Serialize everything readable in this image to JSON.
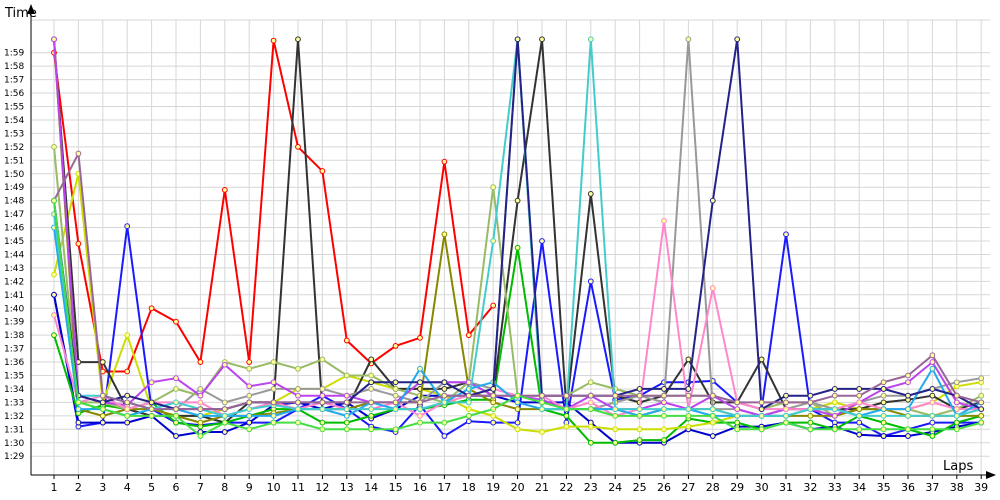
{
  "chart_data": {
    "type": "line",
    "title": "",
    "ylabel": "Time",
    "xlabel": "Laps",
    "x_ticks": [
      "1",
      "2",
      "3",
      "4",
      "5",
      "6",
      "7",
      "8",
      "9",
      "10",
      "11",
      "12",
      "13",
      "14",
      "15",
      "16",
      "17",
      "18",
      "19",
      "20",
      "21",
      "22",
      "23",
      "24",
      "25",
      "26",
      "27",
      "28",
      "29",
      "30",
      "31",
      "32",
      "33",
      "34",
      "35",
      "36",
      "37",
      "38",
      "39"
    ],
    "y_ticks": [
      "1:29",
      "1:30",
      "1:31",
      "1:32",
      "1:33",
      "1:34",
      "1:35",
      "1:36",
      "1:37",
      "1:38",
      "1:39",
      "1:40",
      "1:41",
      "1:42",
      "1:43",
      "1:44",
      "1:45",
      "1:46",
      "1:47",
      "1:48",
      "1:49",
      "1:50",
      "1:51",
      "1:52",
      "1:53",
      "1:54",
      "1:55",
      "1:56",
      "1:57",
      "1:58",
      "1:59"
    ],
    "ylim_seconds": [
      87,
      120
    ],
    "grid": true,
    "series": [
      {
        "color": "#ff0000",
        "values": [
          119,
          104.8,
          95.3,
          95.3,
          100,
          99,
          96,
          108.8,
          96,
          119.9,
          112,
          110.2,
          97.6,
          95.9,
          97.2,
          97.8,
          110.9,
          98,
          100.2,
          null
        ]
      },
      {
        "color": "#1a1aff",
        "values": [
          101,
          91.2,
          91.5,
          106.1,
          92.5,
          91.5,
          91.3,
          91.5,
          91.5,
          91.5,
          92.5,
          93.5,
          92.5,
          91.2,
          90.8,
          92.8,
          90.5,
          91.6,
          91.5,
          91.5,
          105,
          91.5,
          102,
          93.2,
          93.5,
          94.5,
          94.5,
          94.6,
          93,
          92.5,
          105.5,
          92.5,
          91.5,
          91.5,
          90.5,
          91,
          91.5,
          91.5,
          91.5
        ]
      },
      {
        "color": "#0000cc",
        "values": [
          101,
          91.5,
          91.5,
          91.5,
          92,
          90.5,
          90.8,
          90.8,
          91.5,
          92.8,
          93,
          92.5,
          93,
          91.8,
          92.5,
          93.5,
          93.5,
          93.5,
          93.5,
          93,
          93,
          93,
          91.5,
          90,
          90,
          90,
          91,
          90.5,
          91.2,
          91.2,
          91.5,
          91,
          91.2,
          90.6,
          90.5,
          90.5,
          90.8,
          91.2,
          91.5
        ]
      },
      {
        "color": "#00bb00",
        "values": [
          98,
          92.2,
          92.8,
          92.5,
          93,
          91.5,
          91.2,
          91.5,
          92,
          92.5,
          92.5,
          91.5,
          91.5,
          92,
          92.5,
          92.5,
          92.8,
          93.2,
          93.2,
          104.5,
          92.5,
          92,
          90,
          90,
          90.2,
          90.2,
          91.8,
          91.5,
          91.5,
          91,
          91.5,
          91.5,
          91,
          92,
          91.5,
          91,
          90.5,
          91.5,
          92
        ]
      },
      {
        "color": "#ccdd00",
        "values": [
          102.5,
          110,
          93,
          98,
          92.5,
          92,
          92,
          92.5,
          93,
          93,
          94,
          94,
          95,
          94.5,
          94,
          94,
          93.5,
          92.5,
          92,
          91,
          90.8,
          91.2,
          91.2,
          91,
          91,
          91,
          91.2,
          91.5,
          92,
          92,
          92.5,
          92.5,
          93,
          92.5,
          92.5,
          92.5,
          93,
          94.2,
          94.5
        ]
      },
      {
        "color": "#333333",
        "values": [
          120,
          96,
          96,
          92.5,
          92,
          92,
          92,
          91.5,
          93,
          93,
          120,
          92.5,
          92.5,
          96.2,
          94,
          94,
          94,
          94.5,
          93.5,
          108,
          120,
          92.5,
          108.5,
          93.5,
          93,
          93.5,
          96.2,
          93,
          93,
          96.2,
          92.5,
          92.5,
          92.5,
          92.5,
          93,
          93.2,
          93.5,
          92.5,
          93
        ]
      },
      {
        "color": "#999999",
        "values": [
          120,
          93.5,
          93,
          92.5,
          93,
          92.5,
          94,
          93,
          93.5,
          94,
          94,
          94,
          93.5,
          94,
          93.5,
          93,
          94.5,
          94.5,
          94,
          120,
          92.5,
          92.5,
          92.5,
          93,
          93.5,
          93,
          120,
          92.5,
          92.5,
          92,
          92.5,
          93,
          92.5,
          93,
          93.5,
          93.5,
          94,
          94.5,
          94.8
        ]
      },
      {
        "color": "#99bb66",
        "values": [
          112,
          93,
          93,
          92.5,
          93,
          94,
          93.5,
          96,
          95.5,
          96,
          95.5,
          96.2,
          95,
          95,
          94,
          93.5,
          93,
          94.5,
          109,
          93.5,
          93.5,
          93.5,
          94.5,
          94,
          93.5,
          93.5,
          93.5,
          93.5,
          93,
          92.5,
          93,
          93,
          92,
          92.5,
          92.5,
          92.5,
          92,
          92.5,
          93.5
        ]
      },
      {
        "color": "#888800",
        "values": [
          120,
          92.5,
          92,
          92.5,
          92.5,
          92,
          91.5,
          92,
          92,
          92.2,
          92.5,
          92.5,
          92.5,
          93,
          93,
          93,
          105.5,
          94,
          93,
          92.5,
          92.5,
          92.5,
          92.5,
          92.5,
          92,
          92.5,
          92.5,
          92.5,
          92,
          92,
          92,
          92,
          92,
          92.5,
          92.5,
          92,
          92,
          92,
          92
        ]
      },
      {
        "color": "#bb44ee",
        "values": [
          120,
          93.5,
          93,
          92.8,
          94.5,
          94.8,
          93.5,
          95.8,
          94.2,
          94.5,
          93.5,
          93.5,
          93.5,
          93,
          93,
          94.5,
          94.5,
          94.5,
          93.5,
          93.5,
          93.2,
          92.5,
          93.5,
          92.5,
          92.5,
          93,
          92.5,
          93.5,
          92.5,
          92,
          92.5,
          92.5,
          92,
          93,
          94,
          94.5,
          96,
          93,
          92.5
        ]
      },
      {
        "color": "#ff88cc",
        "values": [
          99.5,
          93,
          93.5,
          92.5,
          93,
          93,
          93,
          92,
          92.5,
          93,
          92.5,
          93,
          92.5,
          92.5,
          93,
          92,
          93,
          93.5,
          94,
          93.5,
          93.5,
          92.5,
          93,
          92,
          92.5,
          106.5,
          92.5,
          101.5,
          93,
          92.5,
          92.5,
          92.5,
          92.5,
          93,
          92.5,
          92.5,
          93,
          92.5,
          92.5
        ]
      },
      {
        "color": "#22aaee",
        "values": [
          106,
          92.5,
          92.5,
          92,
          92.5,
          92.5,
          92,
          92,
          92,
          92,
          92.5,
          92.5,
          92,
          93,
          92.5,
          95.5,
          93,
          94,
          94.5,
          93,
          92.5,
          92.5,
          92.5,
          92.5,
          92,
          92.5,
          92.5,
          92,
          92,
          92,
          92,
          92.5,
          92.5,
          92,
          92.5,
          92.5,
          95.5,
          92,
          93
        ]
      },
      {
        "color": "#44cccc",
        "values": [
          107,
          93.5,
          93.5,
          93,
          92.5,
          93,
          92.5,
          92,
          92.5,
          92.8,
          92.5,
          92.5,
          92.5,
          92.5,
          92.5,
          92.5,
          93,
          93,
          105,
          120,
          92.5,
          92.5,
          120,
          92.5,
          92.5,
          92.5,
          92.5,
          92.5,
          92,
          92,
          92,
          92.5,
          92.5,
          92,
          92,
          92,
          92,
          92,
          92.5
        ]
      },
      {
        "color": "#222288",
        "values": [
          108,
          93.5,
          93,
          93.5,
          93,
          92.5,
          92.5,
          92.5,
          93,
          93,
          93,
          93,
          93,
          94.5,
          94.5,
          94.5,
          94.5,
          93.5,
          94,
          120,
          93.5,
          93.5,
          93.5,
          93.5,
          94,
          94,
          94,
          108,
          120,
          92.5,
          93.5,
          93.5,
          94,
          94,
          94,
          93.5,
          94,
          93.5,
          92.5
        ]
      },
      {
        "color": "#996699",
        "values": [
          108,
          111.5,
          93.5,
          93,
          92.5,
          92.5,
          92.5,
          92.5,
          93,
          93,
          93,
          93,
          93,
          93,
          93,
          93,
          93.5,
          93.5,
          93.5,
          93.5,
          93.5,
          93.5,
          93.5,
          93.5,
          93.5,
          93.5,
          93.5,
          93.5,
          93,
          93,
          93,
          93,
          93.5,
          93.5,
          94.5,
          95,
          96.5,
          93.5,
          93
        ]
      },
      {
        "color": "#44dd44",
        "values": [
          108,
          93,
          92.5,
          92,
          92,
          92,
          90.5,
          91.5,
          91,
          91.5,
          91.5,
          91,
          91,
          91,
          91,
          91.5,
          91.5,
          92,
          92.5,
          93.5,
          93,
          92.5,
          92.5,
          92,
          92,
          92,
          92,
          92,
          91,
          91,
          91.5,
          91,
          91,
          91,
          91,
          91,
          91,
          91,
          91.5
        ]
      }
    ]
  }
}
